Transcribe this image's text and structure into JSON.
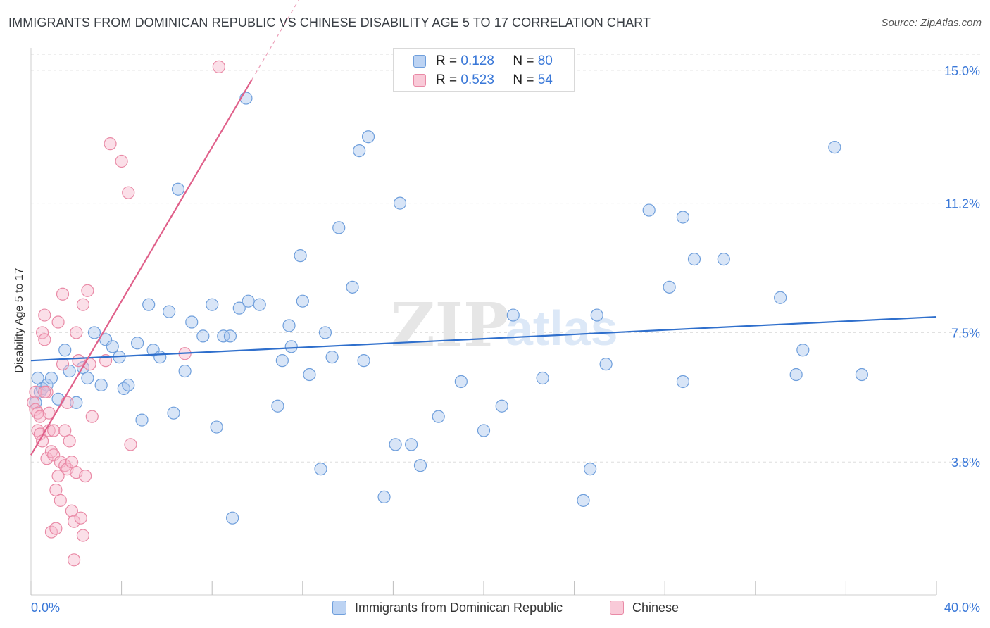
{
  "header": {
    "title": "IMMIGRANTS FROM DOMINICAN REPUBLIC VS CHINESE DISABILITY AGE 5 TO 17 CORRELATION CHART",
    "source": "Source: ZipAtlas.com"
  },
  "legend": {
    "r_label": "R =",
    "n_label": "N =",
    "series": [
      {
        "r": "0.128",
        "n": "80"
      },
      {
        "r": "0.523",
        "n": "54"
      }
    ]
  },
  "chart_data": {
    "type": "scatter",
    "ylabel": "Disability Age 5 to 17",
    "x_tick_labels": [
      "0.0%",
      "40.0%"
    ],
    "y_tick_labels": [
      "15.0%",
      "11.2%",
      "7.5%",
      "3.8%"
    ],
    "y_tick_values": [
      15.0,
      11.2,
      7.5,
      3.8
    ],
    "xlim": [
      0,
      40
    ],
    "ylim": [
      0,
      15.5
    ],
    "grid": true,
    "watermark": "ZIPatlas",
    "colors": {
      "blue_fill": "#a9c6ee",
      "blue_stroke": "#6f9fdc",
      "blue_line": "#2f6fcc",
      "pink_fill": "#f6b9cb",
      "pink_stroke": "#e98aa6",
      "pink_line": "#e0608a",
      "tick_label": "#3a78d8",
      "grid": "#dddddd"
    },
    "series": [
      {
        "name": "Immigrants from Dominican Republic",
        "trend": {
          "x0": 0,
          "y0": 6.7,
          "x1": 40,
          "y1": 7.95
        },
        "points": [
          [
            0.2,
            5.5
          ],
          [
            0.3,
            6.2
          ],
          [
            0.4,
            5.8
          ],
          [
            0.5,
            5.9
          ],
          [
            0.7,
            6.0
          ],
          [
            0.9,
            6.2
          ],
          [
            1.2,
            5.6
          ],
          [
            1.5,
            7.0
          ],
          [
            1.7,
            6.4
          ],
          [
            2.0,
            5.5
          ],
          [
            2.3,
            6.5
          ],
          [
            2.5,
            6.2
          ],
          [
            2.8,
            7.5
          ],
          [
            3.1,
            6.0
          ],
          [
            3.3,
            7.3
          ],
          [
            3.6,
            7.1
          ],
          [
            3.9,
            6.8
          ],
          [
            4.1,
            5.9
          ],
          [
            4.3,
            6.0
          ],
          [
            4.7,
            7.2
          ],
          [
            4.9,
            5.0
          ],
          [
            5.2,
            8.3
          ],
          [
            5.4,
            7.0
          ],
          [
            5.7,
            6.8
          ],
          [
            6.1,
            8.1
          ],
          [
            6.3,
            5.2
          ],
          [
            6.5,
            11.6
          ],
          [
            6.8,
            6.4
          ],
          [
            7.1,
            7.8
          ],
          [
            7.6,
            7.4
          ],
          [
            8.0,
            8.3
          ],
          [
            8.2,
            4.8
          ],
          [
            8.5,
            7.4
          ],
          [
            8.8,
            7.4
          ],
          [
            8.9,
            2.2
          ],
          [
            9.2,
            8.2
          ],
          [
            9.5,
            14.2
          ],
          [
            9.6,
            8.4
          ],
          [
            10.1,
            8.3
          ],
          [
            10.9,
            5.4
          ],
          [
            11.1,
            6.7
          ],
          [
            11.4,
            7.7
          ],
          [
            11.5,
            7.1
          ],
          [
            11.9,
            9.7
          ],
          [
            12.0,
            8.4
          ],
          [
            12.3,
            6.3
          ],
          [
            12.8,
            3.6
          ],
          [
            13.0,
            7.5
          ],
          [
            13.3,
            6.8
          ],
          [
            13.6,
            10.5
          ],
          [
            14.2,
            8.8
          ],
          [
            14.5,
            12.7
          ],
          [
            14.7,
            6.7
          ],
          [
            14.9,
            13.1
          ],
          [
            15.6,
            2.8
          ],
          [
            16.1,
            4.3
          ],
          [
            16.3,
            11.2
          ],
          [
            16.8,
            4.3
          ],
          [
            17.2,
            3.7
          ],
          [
            18.0,
            5.1
          ],
          [
            19.0,
            6.1
          ],
          [
            20.0,
            4.7
          ],
          [
            20.8,
            5.4
          ],
          [
            21.3,
            8.0
          ],
          [
            22.6,
            6.2
          ],
          [
            24.4,
            2.7
          ],
          [
            24.7,
            3.6
          ],
          [
            25.0,
            8.0
          ],
          [
            25.4,
            6.6
          ],
          [
            27.3,
            11.0
          ],
          [
            28.2,
            8.8
          ],
          [
            28.8,
            6.1
          ],
          [
            28.8,
            10.8
          ],
          [
            29.3,
            9.6
          ],
          [
            30.6,
            9.6
          ],
          [
            33.1,
            8.5
          ],
          [
            33.8,
            6.3
          ],
          [
            34.1,
            7.0
          ],
          [
            35.5,
            12.8
          ],
          [
            36.7,
            6.3
          ]
        ]
      },
      {
        "name": "Chinese",
        "trend": {
          "x0": 0,
          "y0": 4.0,
          "x1": 10.0,
          "y1": 15.0,
          "solid_to_x": 10.0
        },
        "points": [
          [
            0.1,
            5.5
          ],
          [
            0.2,
            5.8
          ],
          [
            0.2,
            5.3
          ],
          [
            0.3,
            5.2
          ],
          [
            0.3,
            4.7
          ],
          [
            0.4,
            5.1
          ],
          [
            0.4,
            4.6
          ],
          [
            0.5,
            4.4
          ],
          [
            0.5,
            7.5
          ],
          [
            0.6,
            8.0
          ],
          [
            0.6,
            7.3
          ],
          [
            0.7,
            5.8
          ],
          [
            0.7,
            3.9
          ],
          [
            0.8,
            5.2
          ],
          [
            0.8,
            4.7
          ],
          [
            0.9,
            4.1
          ],
          [
            0.9,
            1.8
          ],
          [
            1.0,
            4.0
          ],
          [
            1.0,
            4.7
          ],
          [
            1.1,
            3.0
          ],
          [
            1.1,
            1.9
          ],
          [
            1.2,
            3.4
          ],
          [
            1.2,
            7.8
          ],
          [
            1.3,
            2.7
          ],
          [
            1.3,
            3.8
          ],
          [
            1.4,
            8.6
          ],
          [
            1.4,
            6.6
          ],
          [
            1.5,
            3.7
          ],
          [
            1.5,
            4.7
          ],
          [
            1.6,
            3.6
          ],
          [
            1.6,
            5.5
          ],
          [
            1.7,
            4.4
          ],
          [
            1.8,
            3.8
          ],
          [
            1.8,
            2.4
          ],
          [
            1.9,
            2.1
          ],
          [
            1.9,
            1.0
          ],
          [
            2.0,
            3.5
          ],
          [
            2.0,
            7.5
          ],
          [
            2.1,
            6.7
          ],
          [
            2.2,
            2.2
          ],
          [
            2.3,
            8.3
          ],
          [
            2.3,
            1.7
          ],
          [
            2.4,
            3.4
          ],
          [
            2.5,
            8.7
          ],
          [
            2.6,
            6.6
          ],
          [
            2.7,
            5.1
          ],
          [
            3.3,
            6.7
          ],
          [
            3.5,
            12.9
          ],
          [
            4.0,
            12.4
          ],
          [
            4.3,
            11.5
          ],
          [
            4.4,
            4.3
          ],
          [
            6.8,
            6.9
          ],
          [
            8.3,
            15.1
          ],
          [
            0.6,
            5.8
          ]
        ]
      }
    ]
  },
  "bottom_legend": [
    {
      "label": "Immigrants from Dominican Republic"
    },
    {
      "label": "Chinese"
    }
  ]
}
